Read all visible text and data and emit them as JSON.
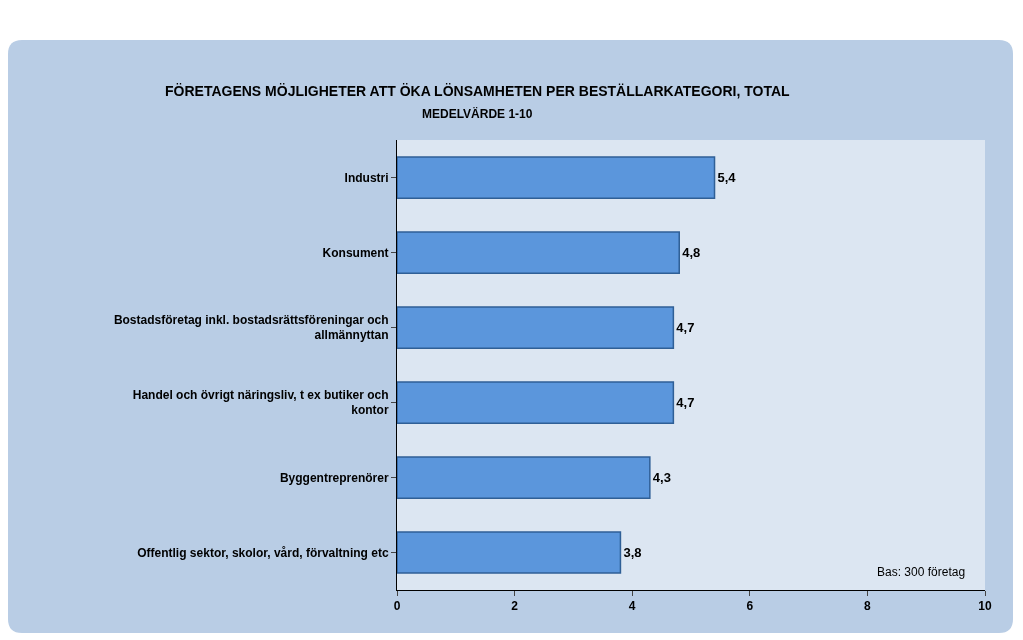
{
  "chart_data": {
    "type": "bar",
    "orientation": "horizontal",
    "title": "FÖRETAGENS MÖJLIGHETER ATT ÖKA LÖNSAMHETEN PER BESTÄLLARKATEGORI, TOTAL",
    "subtitle": "MEDELVÄRDE 1-10",
    "categories": [
      "Industri",
      "Konsument",
      "Bostadsföretag inkl. bostadsrättsföreningar och allmännyttan",
      "Handel och övrigt näringsliv, t ex butiker och kontor",
      "Byggentreprenörer",
      "Offentlig sektor, skolor, vård, förvaltning etc"
    ],
    "values": [
      5.4,
      4.8,
      4.7,
      4.7,
      4.3,
      3.8
    ],
    "value_labels": [
      "5,4",
      "4,8",
      "4,7",
      "4,7",
      "4,3",
      "3,8"
    ],
    "color": "#5b96dc",
    "xlim": [
      0,
      10
    ],
    "xticks": [
      0,
      2,
      4,
      6,
      8,
      10
    ],
    "grid": false,
    "legend": false,
    "annotations": [
      "Bas: 300 företag"
    ]
  }
}
